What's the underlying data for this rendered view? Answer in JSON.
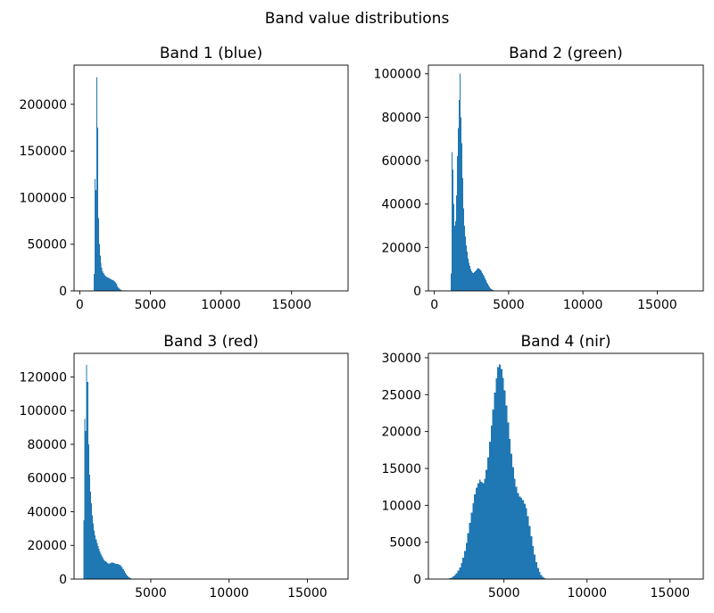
{
  "figure": {
    "suptitle": "Band value distributions"
  },
  "chart_data": [
    {
      "type": "bar",
      "title": "Band 1 (blue)",
      "color": "#1f77b4",
      "xlim": [
        -400,
        19000
      ],
      "ylim": [
        0,
        242000
      ],
      "xticks": [
        0,
        5000,
        10000,
        15000
      ],
      "xtick_labels": [
        "0",
        "5000",
        "10000",
        "15000"
      ],
      "yticks": [
        0,
        50000,
        100000,
        150000,
        200000
      ],
      "ytick_labels": [
        "0",
        "50000",
        "100000",
        "150000",
        "200000"
      ],
      "bin_width": 60,
      "bins": [
        [
          1000,
          18000
        ],
        [
          1060,
          120000
        ],
        [
          1120,
          108000
        ],
        [
          1180,
          229000
        ],
        [
          1240,
          175000
        ],
        [
          1300,
          78000
        ],
        [
          1360,
          50000
        ],
        [
          1420,
          38000
        ],
        [
          1480,
          30000
        ],
        [
          1540,
          25000
        ],
        [
          1600,
          21000
        ],
        [
          1660,
          19000
        ],
        [
          1720,
          17500
        ],
        [
          1780,
          16500
        ],
        [
          1840,
          15500
        ],
        [
          1900,
          15000
        ],
        [
          1960,
          14500
        ],
        [
          2020,
          14000
        ],
        [
          2080,
          13500
        ],
        [
          2140,
          13000
        ],
        [
          2200,
          12500
        ],
        [
          2260,
          12000
        ],
        [
          2320,
          11500
        ],
        [
          2380,
          11000
        ],
        [
          2440,
          10000
        ],
        [
          2500,
          9000
        ],
        [
          2560,
          7500
        ],
        [
          2620,
          6000
        ],
        [
          2680,
          4500
        ],
        [
          2740,
          3200
        ],
        [
          2800,
          2200
        ],
        [
          2860,
          1500
        ],
        [
          2920,
          1000
        ],
        [
          2980,
          600
        ],
        [
          3040,
          300
        ],
        [
          3100,
          150
        ]
      ]
    },
    {
      "type": "bar",
      "title": "Band 2 (green)",
      "color": "#1f77b4",
      "xlim": [
        -400,
        18100
      ],
      "ylim": [
        0,
        104000
      ],
      "xticks": [
        0,
        5000,
        10000,
        15000
      ],
      "xtick_labels": [
        "0",
        "5000",
        "10000",
        "15000"
      ],
      "yticks": [
        0,
        20000,
        40000,
        60000,
        80000,
        100000
      ],
      "ytick_labels": [
        "0",
        "20000",
        "40000",
        "60000",
        "80000",
        "100000"
      ],
      "bin_width": 60,
      "bins": [
        [
          1100,
          8000
        ],
        [
          1160,
          64000
        ],
        [
          1220,
          56000
        ],
        [
          1280,
          40000
        ],
        [
          1340,
          30000
        ],
        [
          1400,
          32000
        ],
        [
          1460,
          44000
        ],
        [
          1520,
          62000
        ],
        [
          1580,
          75000
        ],
        [
          1640,
          88000
        ],
        [
          1700,
          100000
        ],
        [
          1760,
          80000
        ],
        [
          1820,
          68000
        ],
        [
          1880,
          52000
        ],
        [
          1940,
          38000
        ],
        [
          2000,
          30000
        ],
        [
          2060,
          25000
        ],
        [
          2120,
          21000
        ],
        [
          2180,
          18000
        ],
        [
          2240,
          15000
        ],
        [
          2300,
          13000
        ],
        [
          2360,
          11500
        ],
        [
          2420,
          10000
        ],
        [
          2480,
          9000
        ],
        [
          2540,
          8500
        ],
        [
          2600,
          8300
        ],
        [
          2660,
          8600
        ],
        [
          2720,
          9000
        ],
        [
          2780,
          9500
        ],
        [
          2840,
          10000
        ],
        [
          2900,
          10500
        ],
        [
          2960,
          10300
        ],
        [
          3020,
          10000
        ],
        [
          3080,
          9600
        ],
        [
          3140,
          9000
        ],
        [
          3200,
          8300
        ],
        [
          3260,
          7500
        ],
        [
          3320,
          6700
        ],
        [
          3380,
          5800
        ],
        [
          3440,
          4900
        ],
        [
          3500,
          4000
        ],
        [
          3560,
          3200
        ],
        [
          3620,
          2400
        ],
        [
          3680,
          1800
        ],
        [
          3740,
          1300
        ],
        [
          3800,
          900
        ],
        [
          3860,
          600
        ],
        [
          3920,
          400
        ],
        [
          3980,
          250
        ],
        [
          4040,
          150
        ],
        [
          4100,
          80
        ]
      ]
    },
    {
      "type": "bar",
      "title": "Band 3 (red)",
      "color": "#1f77b4",
      "xlim": [
        100,
        17600
      ],
      "ylim": [
        0,
        134000
      ],
      "xticks": [
        5000,
        10000,
        15000
      ],
      "xtick_labels": [
        "5000",
        "10000",
        "15000"
      ],
      "yticks": [
        0,
        20000,
        40000,
        60000,
        80000,
        100000,
        120000
      ],
      "ytick_labels": [
        "0",
        "20000",
        "40000",
        "60000",
        "80000",
        "100000",
        "120000"
      ],
      "bin_width": 60,
      "bins": [
        [
          700,
          35000
        ],
        [
          760,
          95000
        ],
        [
          820,
          88000
        ],
        [
          880,
          127000
        ],
        [
          940,
          117000
        ],
        [
          1000,
          80000
        ],
        [
          1060,
          62000
        ],
        [
          1120,
          52000
        ],
        [
          1180,
          45000
        ],
        [
          1240,
          38000
        ],
        [
          1300,
          33000
        ],
        [
          1360,
          29000
        ],
        [
          1420,
          26000
        ],
        [
          1480,
          23500
        ],
        [
          1540,
          21500
        ],
        [
          1600,
          19500
        ],
        [
          1660,
          18000
        ],
        [
          1720,
          16500
        ],
        [
          1780,
          15000
        ],
        [
          1840,
          14000
        ],
        [
          1900,
          13000
        ],
        [
          1960,
          12000
        ],
        [
          2020,
          11000
        ],
        [
          2080,
          10500
        ],
        [
          2140,
          10000
        ],
        [
          2200,
          9600
        ],
        [
          2260,
          9300
        ],
        [
          2320,
          9200
        ],
        [
          2380,
          9400
        ],
        [
          2440,
          9700
        ],
        [
          2500,
          9900
        ],
        [
          2560,
          9800
        ],
        [
          2620,
          9600
        ],
        [
          2680,
          9400
        ],
        [
          2740,
          9100
        ],
        [
          2800,
          9000
        ],
        [
          2860,
          8900
        ],
        [
          2920,
          8700
        ],
        [
          2980,
          8500
        ],
        [
          3040,
          8100
        ],
        [
          3100,
          7600
        ],
        [
          3160,
          6800
        ],
        [
          3220,
          5800
        ],
        [
          3280,
          4800
        ],
        [
          3340,
          3800
        ],
        [
          3400,
          2900
        ],
        [
          3460,
          2200
        ],
        [
          3520,
          1600
        ],
        [
          3580,
          1100
        ],
        [
          3640,
          700
        ],
        [
          3700,
          450
        ],
        [
          3760,
          250
        ],
        [
          3820,
          120
        ]
      ]
    },
    {
      "type": "bar",
      "title": "Band 4 (nir)",
      "color": "#1f77b4",
      "xlim": [
        450,
        17000
      ],
      "ylim": [
        0,
        30600
      ],
      "xticks": [
        5000,
        10000,
        15000
      ],
      "xtick_labels": [
        "5000",
        "10000",
        "15000"
      ],
      "yticks": [
        0,
        5000,
        10000,
        15000,
        20000,
        25000,
        30000
      ],
      "ytick_labels": [
        "0",
        "5000",
        "10000",
        "15000",
        "20000",
        "25000",
        "30000"
      ],
      "bin_width": 100,
      "bins": [
        [
          1600,
          50
        ],
        [
          1700,
          100
        ],
        [
          1800,
          200
        ],
        [
          1900,
          350
        ],
        [
          2000,
          550
        ],
        [
          2100,
          800
        ],
        [
          2200,
          1150
        ],
        [
          2300,
          1600
        ],
        [
          2400,
          2200
        ],
        [
          2500,
          2900
        ],
        [
          2600,
          3800
        ],
        [
          2700,
          4900
        ],
        [
          2800,
          6200
        ],
        [
          2900,
          7600
        ],
        [
          3000,
          9000
        ],
        [
          3100,
          10300
        ],
        [
          3200,
          11500
        ],
        [
          3300,
          12400
        ],
        [
          3400,
          13000
        ],
        [
          3500,
          13500
        ],
        [
          3600,
          13200
        ],
        [
          3700,
          13000
        ],
        [
          3800,
          13600
        ],
        [
          3900,
          14800
        ],
        [
          4000,
          16500
        ],
        [
          4100,
          18600
        ],
        [
          4200,
          20800
        ],
        [
          4300,
          23000
        ],
        [
          4400,
          25300
        ],
        [
          4500,
          27200
        ],
        [
          4600,
          28700
        ],
        [
          4700,
          29100
        ],
        [
          4800,
          28500
        ],
        [
          4900,
          27300
        ],
        [
          5000,
          25600
        ],
        [
          5100,
          23500
        ],
        [
          5200,
          21200
        ],
        [
          5300,
          19000
        ],
        [
          5400,
          17000
        ],
        [
          5500,
          15200
        ],
        [
          5600,
          13600
        ],
        [
          5700,
          12500
        ],
        [
          5800,
          11700
        ],
        [
          5900,
          11200
        ],
        [
          6000,
          11000
        ],
        [
          6100,
          10700
        ],
        [
          6200,
          10200
        ],
        [
          6300,
          9600
        ],
        [
          6400,
          8500
        ],
        [
          6500,
          7200
        ],
        [
          6600,
          5800
        ],
        [
          6700,
          4500
        ],
        [
          6800,
          3300
        ],
        [
          6900,
          2300
        ],
        [
          7000,
          1500
        ],
        [
          7100,
          950
        ],
        [
          7200,
          550
        ],
        [
          7300,
          300
        ],
        [
          7400,
          150
        ],
        [
          7500,
          70
        ]
      ]
    }
  ]
}
